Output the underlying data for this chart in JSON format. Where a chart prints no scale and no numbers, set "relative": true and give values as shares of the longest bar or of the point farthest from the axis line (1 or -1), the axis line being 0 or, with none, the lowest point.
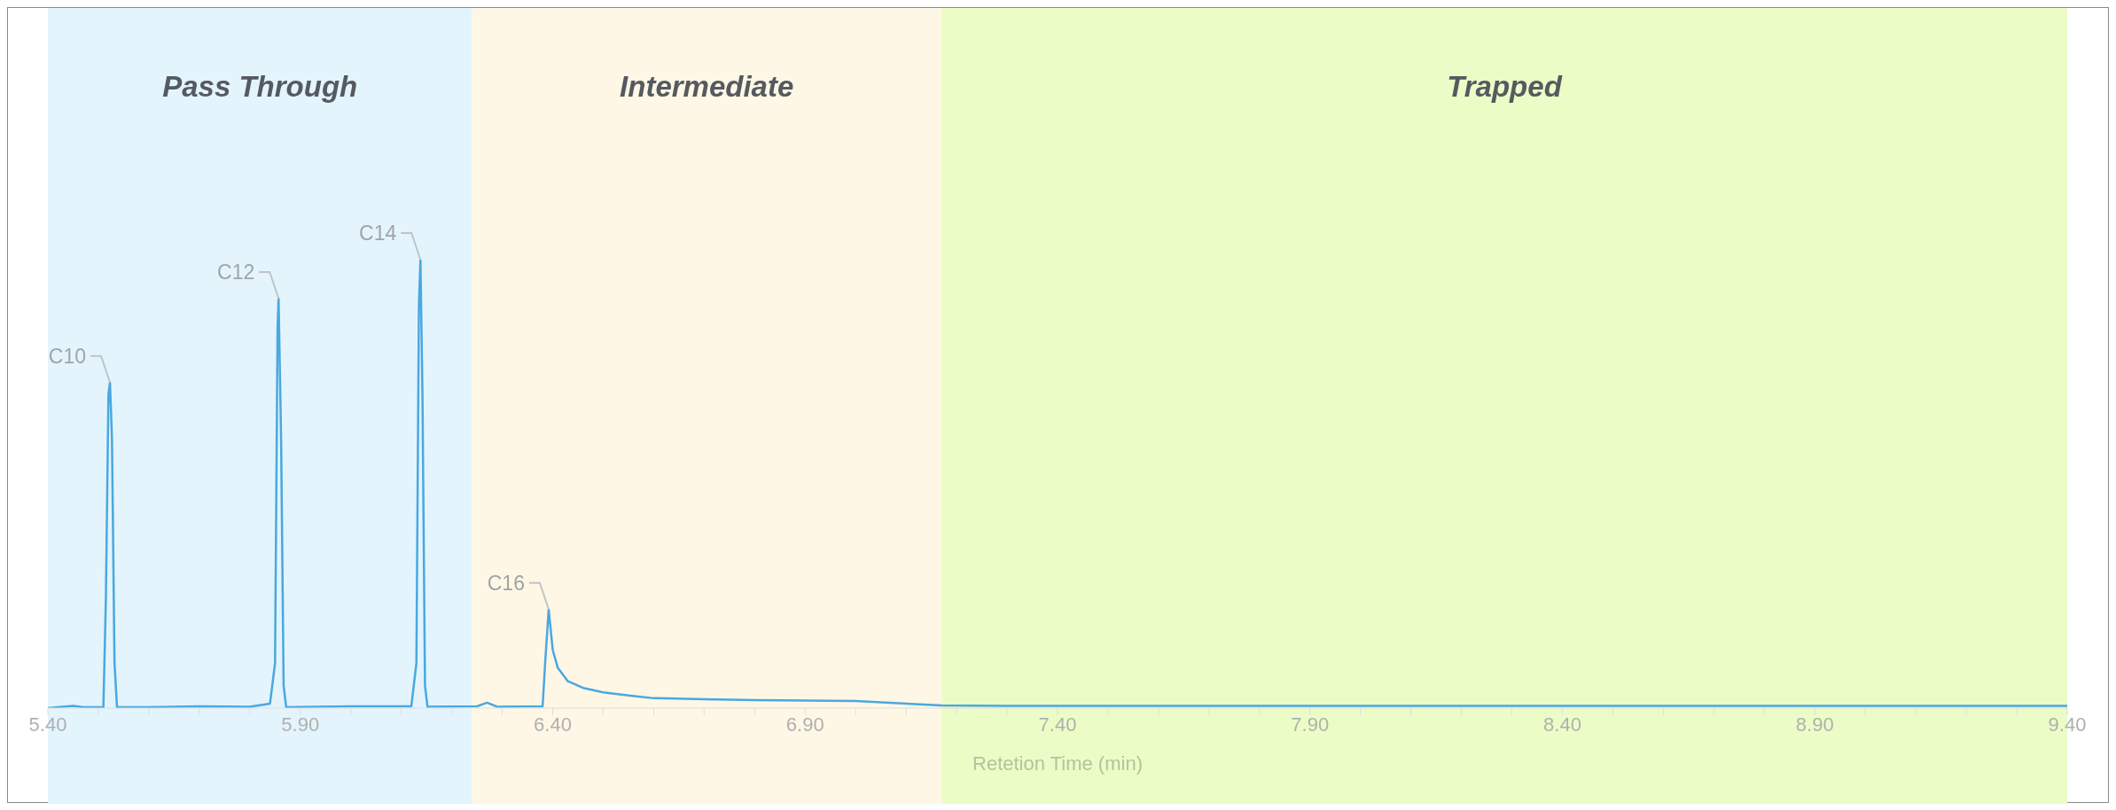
{
  "chart_data": {
    "type": "line",
    "relative": true,
    "xlabel": "Retetion Time (min)",
    "legend": false,
    "grid": false,
    "marker": "none",
    "line_style": "solid",
    "xlim": [
      5.4,
      9.4
    ],
    "xticks": [
      {
        "value": 5.4,
        "label": "5.40"
      },
      {
        "value": 5.5,
        "label": null
      },
      {
        "value": 5.6,
        "label": null
      },
      {
        "value": 5.7,
        "label": null
      },
      {
        "value": 5.8,
        "label": null
      },
      {
        "value": 5.9,
        "label": "5.90"
      },
      {
        "value": 6.0,
        "label": null
      },
      {
        "value": 6.1,
        "label": null
      },
      {
        "value": 6.2,
        "label": null
      },
      {
        "value": 6.3,
        "label": null
      },
      {
        "value": 6.4,
        "label": "6.40"
      },
      {
        "value": 6.5,
        "label": null
      },
      {
        "value": 6.6,
        "label": null
      },
      {
        "value": 6.7,
        "label": null
      },
      {
        "value": 6.8,
        "label": null
      },
      {
        "value": 6.9,
        "label": "6.90"
      },
      {
        "value": 7.0,
        "label": null
      },
      {
        "value": 7.1,
        "label": null
      },
      {
        "value": 7.2,
        "label": null
      },
      {
        "value": 7.3,
        "label": null
      },
      {
        "value": 7.4,
        "label": "7.40"
      },
      {
        "value": 7.5,
        "label": null
      },
      {
        "value": 7.6,
        "label": null
      },
      {
        "value": 7.7,
        "label": null
      },
      {
        "value": 7.8,
        "label": null
      },
      {
        "value": 7.9,
        "label": "7.90"
      },
      {
        "value": 8.0,
        "label": null
      },
      {
        "value": 8.1,
        "label": null
      },
      {
        "value": 8.2,
        "label": null
      },
      {
        "value": 8.3,
        "label": null
      },
      {
        "value": 8.4,
        "label": "8.40"
      },
      {
        "value": 8.5,
        "label": null
      },
      {
        "value": 8.6,
        "label": null
      },
      {
        "value": 8.7,
        "label": null
      },
      {
        "value": 8.8,
        "label": null
      },
      {
        "value": 8.9,
        "label": "8.90"
      },
      {
        "value": 9.0,
        "label": null
      },
      {
        "value": 9.1,
        "label": null
      },
      {
        "value": 9.2,
        "label": null
      },
      {
        "value": 9.3,
        "label": null
      },
      {
        "value": 9.4,
        "label": "9.40"
      }
    ],
    "bands": [
      {
        "axis": "x",
        "from": 5.4,
        "to": 6.24,
        "label": "Pass Through",
        "color": "#e3f4fd"
      },
      {
        "axis": "x",
        "from": 6.24,
        "to": 7.17,
        "label": "Intermediate",
        "color": "#fef7e6"
      },
      {
        "axis": "x",
        "from": 7.17,
        "to": 9.4,
        "label": "Trapped",
        "color": "#ecfcc6"
      }
    ],
    "annotations": [
      {
        "text": "C10",
        "x": 5.523,
        "y": 0.726
      },
      {
        "text": "C12",
        "x": 5.857,
        "y": 0.913
      },
      {
        "text": "C14",
        "x": 6.138,
        "y": 1
      },
      {
        "text": "C16",
        "x": 6.392,
        "y": 0.22
      }
    ],
    "series": [
      {
        "color": "#4aa8e0",
        "x": [
          5.4,
          5.45,
          5.47,
          5.51,
          5.515,
          5.52,
          5.523,
          5.527,
          5.532,
          5.537,
          5.6,
          5.7,
          5.8,
          5.84,
          5.85,
          5.855,
          5.857,
          5.862,
          5.867,
          5.872,
          6.0,
          6.12,
          6.13,
          6.135,
          6.138,
          6.142,
          6.147,
          6.152,
          6.25,
          6.27,
          6.29,
          6.38,
          6.385,
          6.392,
          6.4,
          6.41,
          6.43,
          6.46,
          6.5,
          6.55,
          6.6,
          6.7,
          6.8,
          7.0,
          7.1,
          7.17,
          7.3,
          8.0,
          9.4
        ],
        "values": [
          0,
          0.005,
          0.002,
          0.002,
          0.25,
          0.7,
          0.726,
          0.6,
          0.1,
          0.002,
          0.002,
          0.004,
          0.003,
          0.01,
          0.1,
          0.85,
          0.913,
          0.6,
          0.05,
          0.002,
          0.004,
          0.004,
          0.1,
          0.9,
          1,
          0.7,
          0.05,
          0.003,
          0.004,
          0.012,
          0.003,
          0.004,
          0.1,
          0.22,
          0.13,
          0.09,
          0.06,
          0.045,
          0.035,
          0.028,
          0.022,
          0.02,
          0.018,
          0.016,
          0.01,
          0.006,
          0.005,
          0.005,
          0.005
        ]
      }
    ]
  }
}
